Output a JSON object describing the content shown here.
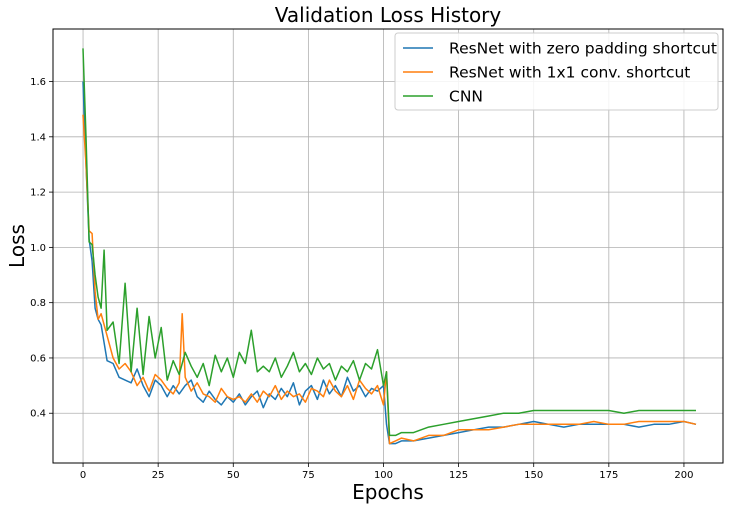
{
  "chart_data": {
    "type": "line",
    "title": "Validation Loss History",
    "xlabel": "Epochs",
    "ylabel": "Loss",
    "xlim": [
      -10,
      213
    ],
    "ylim": [
      0.22,
      1.79
    ],
    "xticks": [
      0,
      25,
      50,
      75,
      100,
      125,
      150,
      175,
      200
    ],
    "yticks": [
      0.4,
      0.6,
      0.8,
      1.0,
      1.2,
      1.4,
      1.6
    ],
    "ytick_labels": [
      "0.4",
      "0.6",
      "0.8",
      "1.0",
      "1.2",
      "1.4",
      "1.6"
    ],
    "grid": true,
    "legend_position": "top-right",
    "series": [
      {
        "name": "ResNet with zero padding shortcut",
        "color": "#1f77b4",
        "x": [
          0,
          1,
          2,
          3,
          4,
          5,
          6,
          8,
          10,
          12,
          14,
          16,
          18,
          20,
          22,
          24,
          26,
          28,
          30,
          32,
          34,
          36,
          38,
          40,
          42,
          44,
          46,
          48,
          50,
          52,
          54,
          56,
          58,
          60,
          62,
          64,
          66,
          68,
          70,
          72,
          74,
          76,
          78,
          80,
          82,
          84,
          86,
          88,
          90,
          92,
          94,
          96,
          98,
          100,
          101,
          102,
          104,
          106,
          110,
          115,
          120,
          125,
          130,
          135,
          140,
          145,
          150,
          155,
          160,
          165,
          170,
          175,
          180,
          185,
          190,
          195,
          200,
          204
        ],
        "y": [
          1.6,
          1.3,
          1.03,
          0.95,
          0.78,
          0.74,
          0.72,
          0.59,
          0.58,
          0.53,
          0.52,
          0.51,
          0.56,
          0.5,
          0.46,
          0.52,
          0.5,
          0.46,
          0.5,
          0.47,
          0.5,
          0.52,
          0.46,
          0.44,
          0.48,
          0.45,
          0.43,
          0.46,
          0.44,
          0.47,
          0.43,
          0.46,
          0.48,
          0.42,
          0.47,
          0.45,
          0.49,
          0.46,
          0.51,
          0.43,
          0.48,
          0.5,
          0.45,
          0.52,
          0.47,
          0.5,
          0.46,
          0.53,
          0.48,
          0.5,
          0.46,
          0.49,
          0.48,
          0.5,
          0.36,
          0.29,
          0.29,
          0.3,
          0.3,
          0.31,
          0.32,
          0.33,
          0.34,
          0.35,
          0.35,
          0.36,
          0.37,
          0.36,
          0.35,
          0.36,
          0.36,
          0.36,
          0.36,
          0.35,
          0.36,
          0.36,
          0.37,
          0.36
        ]
      },
      {
        "name": "ResNet with 1x1 conv. shortcut",
        "color": "#ff7f0e",
        "x": [
          0,
          1,
          2,
          3,
          4,
          5,
          6,
          8,
          10,
          12,
          14,
          16,
          18,
          20,
          22,
          24,
          26,
          28,
          30,
          32,
          33,
          34,
          36,
          38,
          40,
          42,
          44,
          46,
          48,
          50,
          52,
          54,
          56,
          58,
          60,
          62,
          64,
          66,
          68,
          70,
          72,
          74,
          76,
          78,
          80,
          82,
          84,
          86,
          88,
          90,
          92,
          94,
          96,
          98,
          100,
          101,
          102,
          104,
          106,
          110,
          115,
          120,
          125,
          130,
          135,
          140,
          145,
          150,
          155,
          160,
          165,
          170,
          175,
          180,
          185,
          190,
          195,
          200,
          204
        ],
        "y": [
          1.48,
          1.3,
          1.06,
          1.05,
          0.84,
          0.74,
          0.76,
          0.68,
          0.6,
          0.56,
          0.58,
          0.55,
          0.5,
          0.53,
          0.48,
          0.54,
          0.52,
          0.49,
          0.47,
          0.51,
          0.76,
          0.53,
          0.48,
          0.51,
          0.47,
          0.46,
          0.44,
          0.49,
          0.46,
          0.45,
          0.46,
          0.44,
          0.47,
          0.44,
          0.48,
          0.46,
          0.5,
          0.45,
          0.48,
          0.46,
          0.47,
          0.44,
          0.49,
          0.48,
          0.46,
          0.52,
          0.48,
          0.46,
          0.5,
          0.45,
          0.52,
          0.49,
          0.47,
          0.5,
          0.43,
          0.55,
          0.29,
          0.3,
          0.31,
          0.3,
          0.32,
          0.32,
          0.34,
          0.34,
          0.34,
          0.35,
          0.36,
          0.36,
          0.36,
          0.36,
          0.36,
          0.37,
          0.36,
          0.36,
          0.37,
          0.37,
          0.37,
          0.37,
          0.36
        ]
      },
      {
        "name": "CNN",
        "color": "#2ca02c",
        "x": [
          0,
          1,
          2,
          3,
          4,
          5,
          6,
          7,
          8,
          10,
          12,
          14,
          16,
          18,
          20,
          22,
          24,
          26,
          28,
          30,
          32,
          34,
          36,
          38,
          40,
          42,
          44,
          46,
          48,
          50,
          52,
          54,
          56,
          58,
          60,
          62,
          64,
          66,
          68,
          70,
          72,
          74,
          76,
          78,
          80,
          82,
          84,
          86,
          88,
          90,
          92,
          94,
          96,
          98,
          100,
          101,
          102,
          104,
          106,
          110,
          115,
          120,
          125,
          130,
          135,
          140,
          145,
          150,
          155,
          160,
          165,
          170,
          175,
          180,
          185,
          190,
          195,
          200,
          204
        ],
        "y": [
          1.72,
          1.4,
          1.02,
          1.01,
          0.9,
          0.82,
          0.78,
          0.99,
          0.7,
          0.73,
          0.58,
          0.87,
          0.55,
          0.78,
          0.54,
          0.75,
          0.6,
          0.71,
          0.52,
          0.59,
          0.54,
          0.62,
          0.57,
          0.53,
          0.58,
          0.5,
          0.61,
          0.55,
          0.6,
          0.53,
          0.62,
          0.58,
          0.7,
          0.55,
          0.57,
          0.55,
          0.6,
          0.53,
          0.57,
          0.62,
          0.55,
          0.58,
          0.54,
          0.6,
          0.56,
          0.58,
          0.52,
          0.57,
          0.55,
          0.59,
          0.52,
          0.58,
          0.56,
          0.63,
          0.5,
          0.55,
          0.32,
          0.32,
          0.33,
          0.33,
          0.35,
          0.36,
          0.37,
          0.38,
          0.39,
          0.4,
          0.4,
          0.41,
          0.41,
          0.41,
          0.41,
          0.41,
          0.41,
          0.4,
          0.41,
          0.41,
          0.41,
          0.41,
          0.41
        ]
      }
    ]
  }
}
